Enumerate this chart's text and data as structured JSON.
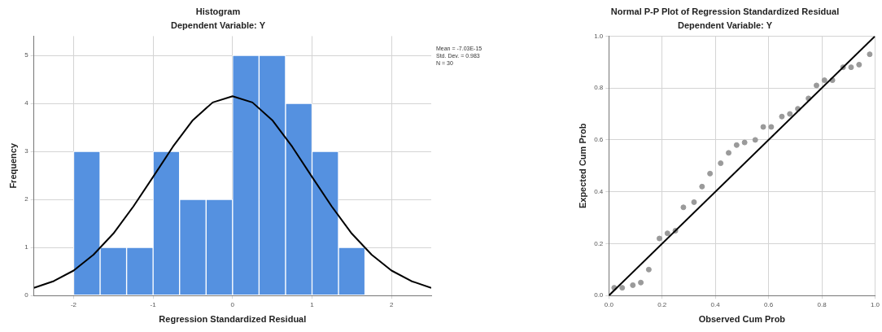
{
  "chart_data": [
    {
      "type": "histogram",
      "title": "Histogram",
      "subtitle": "Dependent Variable: Y",
      "xlabel": "Regression Standardized Residual",
      "ylabel": "Frequency",
      "series": [
        {
          "color": "#5591e0",
          "bins": [
            -2,
            -1.667,
            -1.333,
            -1,
            -0.667,
            -0.333,
            0,
            0.333,
            0.667,
            1,
            1.333,
            1.667
          ],
          "values": [
            3,
            1,
            1,
            3,
            2,
            2,
            5,
            5,
            4,
            3,
            1
          ]
        },
        {
          "type": "line",
          "color": "#000000",
          "x": [
            -2.5,
            -2.25,
            -2,
            -1.75,
            -1.5,
            -1.25,
            -1,
            -0.75,
            -0.5,
            -0.25,
            0,
            0.25,
            0.5,
            0.75,
            1,
            1.25,
            1.5,
            1.75,
            2,
            2.25,
            2.5
          ],
          "values": [
            0.16,
            0.3,
            0.52,
            0.85,
            1.29,
            1.85,
            2.47,
            3.1,
            3.65,
            4.02,
            4.15,
            4.02,
            3.65,
            3.1,
            2.47,
            1.85,
            1.29,
            0.85,
            0.52,
            0.3,
            0.16
          ]
        }
      ],
      "xlim": [
        -2.5,
        2.5
      ],
      "xticks": [
        -2,
        -1,
        0,
        1,
        2
      ],
      "ylim": [
        0,
        5.4
      ],
      "yticks": [
        0,
        1,
        2,
        3,
        4,
        5
      ],
      "annotations": [
        "Mean = -7.03E-15",
        "Std. Dev. = 0.983",
        "N = 30"
      ],
      "grid": true,
      "legend": false,
      "marker": "none",
      "line_style": "solid"
    },
    {
      "type": "scatter",
      "title": "Normal P-P Plot of Regression Standardized Residual",
      "subtitle": "Dependent Variable: Y",
      "xlabel": "Observed Cum Prob",
      "ylabel": "Expected Cum Prob",
      "series": [
        {
          "marker": "circle",
          "color": "#9a9a9a",
          "x": [
            0.02,
            0.05,
            0.09,
            0.12,
            0.15,
            0.19,
            0.22,
            0.25,
            0.28,
            0.32,
            0.35,
            0.38,
            0.42,
            0.45,
            0.48,
            0.51,
            0.55,
            0.58,
            0.61,
            0.65,
            0.68,
            0.71,
            0.75,
            0.78,
            0.81,
            0.84,
            0.88,
            0.91,
            0.94,
            0.98
          ],
          "values": [
            0.03,
            0.03,
            0.04,
            0.05,
            0.1,
            0.22,
            0.24,
            0.25,
            0.34,
            0.36,
            0.42,
            0.47,
            0.51,
            0.55,
            0.58,
            0.59,
            0.6,
            0.65,
            0.65,
            0.69,
            0.7,
            0.72,
            0.76,
            0.81,
            0.83,
            0.83,
            0.88,
            0.88,
            0.89,
            0.93
          ]
        },
        {
          "type": "line",
          "marker": "none",
          "color": "#000000",
          "x": [
            0,
            1
          ],
          "values": [
            0,
            1
          ]
        }
      ],
      "xlim": [
        0,
        1
      ],
      "xticks": [
        {
          "value": 0,
          "label": "0.0"
        },
        {
          "value": 0.2,
          "label": "0.2"
        },
        {
          "value": 0.4,
          "label": "0.4"
        },
        {
          "value": 0.6,
          "label": "0.6"
        },
        {
          "value": 0.8,
          "label": "0.8"
        },
        {
          "value": 1,
          "label": "1.0"
        }
      ],
      "ylim": [
        0,
        1
      ],
      "yticks": [
        {
          "value": 0,
          "label": "0.0"
        },
        {
          "value": 0.2,
          "label": "0.2"
        },
        {
          "value": 0.4,
          "label": "0.4"
        },
        {
          "value": 0.6,
          "label": "0.6"
        },
        {
          "value": 0.8,
          "label": "0.8"
        },
        {
          "value": 1,
          "label": "1.0"
        }
      ],
      "grid": true,
      "legend": false
    }
  ]
}
